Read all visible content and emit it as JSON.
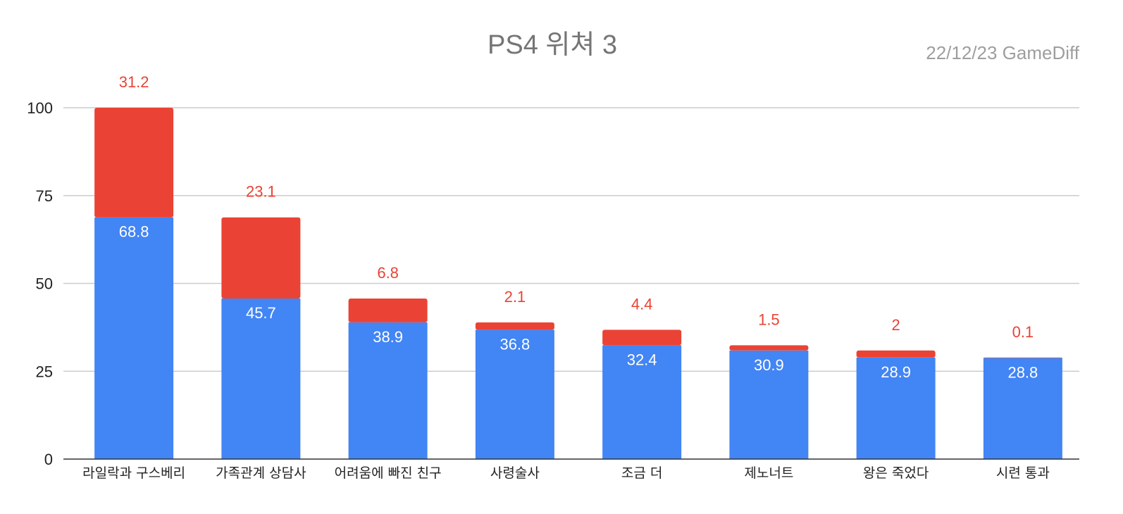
{
  "chart_data": {
    "type": "bar",
    "stacked": true,
    "title": "PS4 위쳐 3",
    "subtitle": "22/12/23  GameDiff",
    "xlabel": "",
    "ylabel": "",
    "ylim": [
      0,
      100
    ],
    "yticks": [
      0,
      25,
      50,
      75,
      100
    ],
    "grid": true,
    "legend": "none",
    "categories": [
      "라일락과 구스베리",
      "가족관계 상담사",
      "어려움에 빠진 친구",
      "사령술사",
      "조금 더",
      "제노너트",
      "왕은 죽었다",
      "시련 통과"
    ],
    "series": [
      {
        "color": "#4285f4",
        "label_color": "#ffffff",
        "values": [
          68.8,
          45.7,
          38.9,
          36.8,
          32.4,
          30.9,
          28.9,
          28.8
        ]
      },
      {
        "color": "#ea4335",
        "label_color": "#ea4335",
        "values": [
          31.2,
          23.1,
          6.8,
          2.1,
          4.4,
          1.5,
          2,
          0.1
        ]
      }
    ],
    "colors": {
      "grid": "#cccccc",
      "axis": "#333333"
    }
  }
}
